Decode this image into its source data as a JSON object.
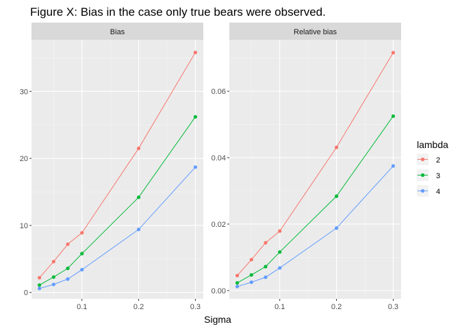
{
  "title": "Figure X: Bias in the case only true bears were observed.",
  "chart_data": {
    "type": "line",
    "xlabel": "Sigma",
    "ylabel": "",
    "x": [
      0.025,
      0.05,
      0.075,
      0.1,
      0.2,
      0.3
    ],
    "legend": {
      "title": "lambda",
      "placement": "right",
      "entries": [
        "2",
        "3",
        "4"
      ]
    },
    "colors": {
      "2": "#F8766D",
      "3": "#00BA38",
      "4": "#619CFF"
    },
    "x_ticks": [
      "0.1",
      "0.2",
      "0.3"
    ],
    "x_tick_values": [
      0.1,
      0.2,
      0.3
    ],
    "xlim": [
      0.011,
      0.314
    ],
    "grid": true,
    "panels": [
      {
        "label": "Bias",
        "ylim": [
          -0.95,
          37.7
        ],
        "y_ticks": [
          "0",
          "10",
          "20",
          "30"
        ],
        "y_tick_values": [
          0,
          10,
          20,
          30
        ],
        "series": [
          {
            "name": "2",
            "values": [
              2.2,
              4.6,
              7.2,
              8.9,
              21.5,
              35.8
            ]
          },
          {
            "name": "3",
            "values": [
              1.1,
              2.3,
              3.6,
              5.8,
              14.2,
              26.2
            ]
          },
          {
            "name": "4",
            "values": [
              0.6,
              1.2,
              2.0,
              3.4,
              9.4,
              18.7
            ]
          }
        ]
      },
      {
        "label": "Relative bias",
        "ylim": [
          -0.0025,
          0.0755
        ],
        "y_ticks": [
          "0.00",
          "0.02",
          "0.04",
          "0.06"
        ],
        "y_tick_values": [
          0,
          0.02,
          0.04,
          0.06
        ],
        "series": [
          {
            "name": "2",
            "values": [
              0.0045,
              0.0093,
              0.0144,
              0.0179,
              0.0431,
              0.0716
            ]
          },
          {
            "name": "3",
            "values": [
              0.0023,
              0.0047,
              0.0072,
              0.0116,
              0.0284,
              0.0525
            ]
          },
          {
            "name": "4",
            "values": [
              0.0012,
              0.0025,
              0.004,
              0.0068,
              0.0188,
              0.0375
            ]
          }
        ]
      }
    ]
  }
}
